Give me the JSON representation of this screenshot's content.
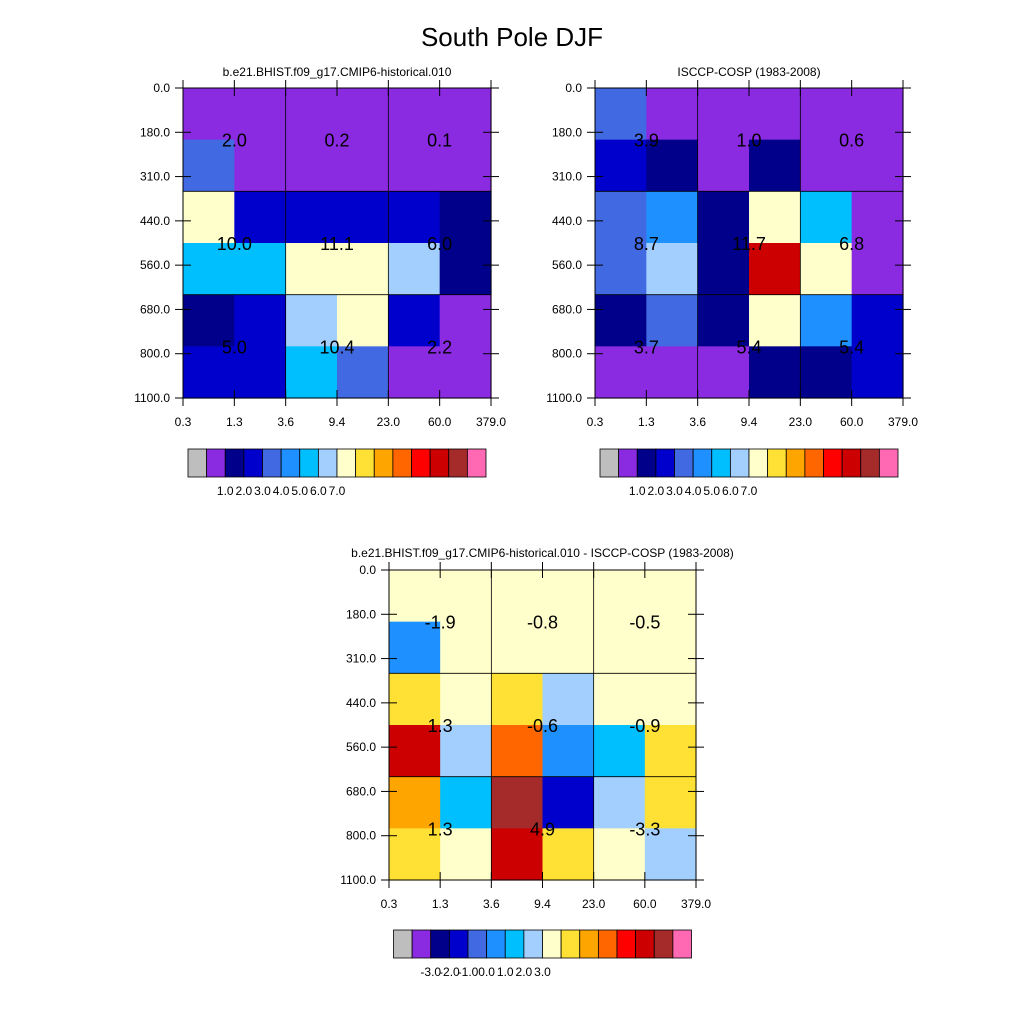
{
  "title": "South Pole DJF",
  "chart_data": [
    {
      "type": "heatmap",
      "title": "b.e21.BHIST.f09_g17.CMIP6-historical.010",
      "x_ticks": [
        "0.3",
        "1.3",
        "3.6",
        "9.4",
        "23.0",
        "60.0",
        "379.0"
      ],
      "y_ticks": [
        "0.0",
        "180.0",
        "310.0",
        "440.0",
        "560.0",
        "680.0",
        "800.0",
        "1100.0"
      ],
      "grid": "coarse 3x3 lines",
      "cells": [
        [
          1,
          1,
          1,
          1,
          1,
          1
        ],
        [
          4,
          1,
          1,
          1,
          1,
          1
        ],
        [
          8,
          3,
          3,
          3,
          3,
          2
        ],
        [
          6,
          6,
          8,
          8,
          7,
          2
        ],
        [
          2,
          3,
          7,
          8,
          3,
          1
        ],
        [
          3,
          3,
          6,
          4,
          1,
          1
        ]
      ],
      "labels": [
        [
          "2.0",
          "0.2",
          "0.1"
        ],
        [
          "10.0",
          "11.1",
          "6.0"
        ],
        [
          "5.0",
          "10.4",
          "2.2"
        ]
      ],
      "colorbar_labels": [
        "1.0",
        "2.0",
        "3.0",
        "4.0",
        "5.0",
        "6.0",
        "7.0"
      ]
    },
    {
      "type": "heatmap",
      "title": "ISCCP-COSP (1983-2008)",
      "x_ticks": [
        "0.3",
        "1.3",
        "3.6",
        "9.4",
        "23.0",
        "60.0",
        "379.0"
      ],
      "y_ticks": [
        "0.0",
        "180.0",
        "310.0",
        "440.0",
        "560.0",
        "680.0",
        "800.0",
        "1100.0"
      ],
      "grid": "coarse 3x3 lines",
      "cells": [
        [
          4,
          1,
          1,
          1,
          1,
          1
        ],
        [
          3,
          2,
          1,
          2,
          1,
          1
        ],
        [
          4,
          5,
          2,
          8,
          6,
          1
        ],
        [
          4,
          7,
          2,
          13,
          8,
          1
        ],
        [
          2,
          4,
          2,
          8,
          5,
          3
        ],
        [
          1,
          1,
          1,
          2,
          2,
          3
        ]
      ],
      "labels": [
        [
          "3.9",
          "1.0",
          "0.6"
        ],
        [
          "8.7",
          "11.7",
          "6.8"
        ],
        [
          "3.7",
          "5.4",
          "5.4"
        ]
      ],
      "colorbar_labels": [
        "1.0",
        "2.0",
        "3.0",
        "4.0",
        "5.0",
        "6.0",
        "7.0"
      ]
    },
    {
      "type": "heatmap",
      "title": "b.e21.BHIST.f09_g17.CMIP6-historical.010 - ISCCP-COSP (1983-2008)",
      "x_ticks": [
        "0.3",
        "1.3",
        "3.6",
        "9.4",
        "23.0",
        "60.0",
        "379.0"
      ],
      "y_ticks": [
        "0.0",
        "180.0",
        "310.0",
        "440.0",
        "560.0",
        "680.0",
        "800.0",
        "1100.0"
      ],
      "grid": "coarse 3x3 lines",
      "cells": [
        [
          8,
          8,
          8,
          8,
          8,
          8
        ],
        [
          5,
          8,
          8,
          8,
          8,
          8
        ],
        [
          9,
          8,
          9,
          7,
          8,
          8
        ],
        [
          13,
          7,
          11,
          5,
          6,
          9
        ],
        [
          10,
          6,
          14,
          3,
          7,
          9
        ],
        [
          9,
          8,
          13,
          9,
          8,
          7
        ]
      ],
      "labels": [
        [
          "-1.9",
          "-0.8",
          "-0.5"
        ],
        [
          "1.3",
          "-0.6",
          "-0.9"
        ],
        [
          "1.3",
          "4.9",
          "-3.3"
        ]
      ],
      "colorbar_labels": [
        "-3.0",
        "-2.0",
        "-1.0",
        "0.0",
        "1.0",
        "2.0",
        "3.0"
      ]
    }
  ],
  "palette": [
    "#bebebe",
    "#8a2be2",
    "#00008b",
    "#0000cd",
    "#4169e1",
    "#1e90ff",
    "#00bfff",
    "#a2cffe",
    "#ffffcc",
    "#ffe135",
    "#ffa500",
    "#ff6600",
    "#ff0000",
    "#cc0000",
    "#a52a2a",
    "#ff69b4"
  ]
}
